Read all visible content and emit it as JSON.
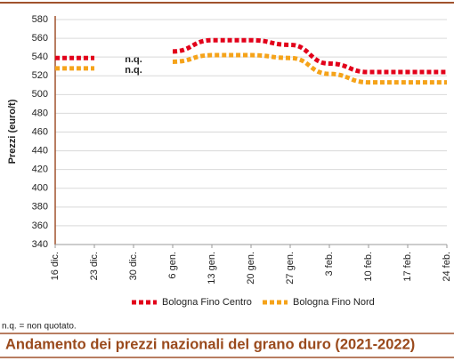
{
  "chart_data": {
    "type": "line",
    "title": "Andamento dei prezzi nazionali del grano duro (2021-2022)",
    "y_label": "Prezzi (euro/t)",
    "note": "n.q. = non quotato.",
    "annotations": [
      "n.q.",
      "n.q."
    ],
    "categories": [
      "16 dic.",
      "23 dic.",
      "30 dic.",
      "6 gen.",
      "13 gen.",
      "20 gen.",
      "27 gen.",
      "3 feb.",
      "10 feb.",
      "17 feb.",
      "24 feb."
    ],
    "series": [
      {
        "name": "Bologna Fino Centro",
        "color": "#e2001a",
        "values": [
          539,
          539,
          null,
          546,
          558,
          558,
          553,
          533,
          524,
          524,
          524
        ]
      },
      {
        "name": "Bologna Fino Nord",
        "color": "#f5a31a",
        "values": [
          528,
          528,
          null,
          535,
          542,
          542,
          539,
          522,
          513,
          513,
          513
        ]
      }
    ],
    "ylim": [
      340,
      580
    ],
    "yticks": [
      340,
      360,
      380,
      400,
      420,
      440,
      460,
      480,
      500,
      520,
      540,
      560,
      580
    ],
    "grid": true,
    "legend": "bottom"
  }
}
